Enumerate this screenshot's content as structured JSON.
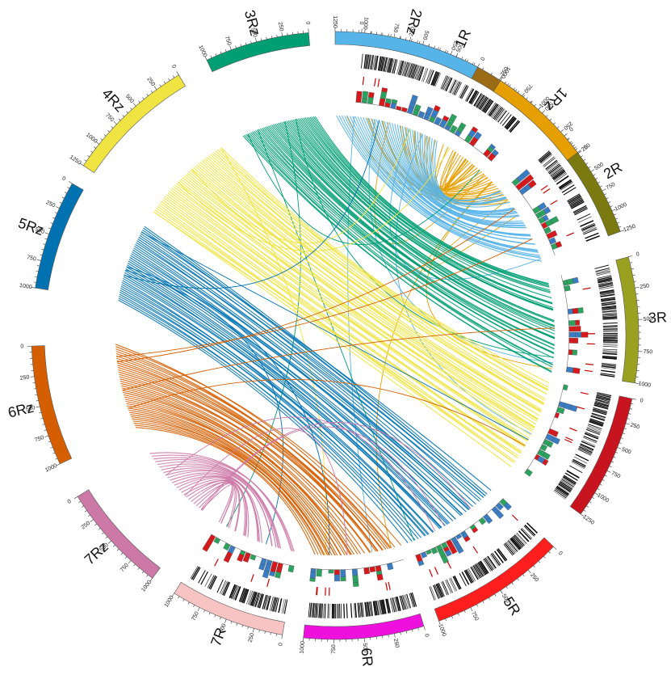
{
  "chromosomes": [
    {
      "id": "1R",
      "label": "1R",
      "color": "#9b6b16",
      "length": 1000,
      "ticks": [
        "0",
        "250",
        "500",
        "750",
        "1000"
      ],
      "side": "R"
    },
    {
      "id": "2R",
      "label": "2R",
      "color": "#7a7a10",
      "length": 1250,
      "ticks": [
        "0",
        "250",
        "500",
        "750",
        "1000",
        "1250"
      ],
      "side": "R"
    },
    {
      "id": "3R",
      "label": "3R",
      "color": "#9aa020",
      "length": 1000,
      "ticks": [
        "0",
        "250",
        "500",
        "750",
        "1000"
      ],
      "side": "R"
    },
    {
      "id": "4R",
      "label": "",
      "color": "#c8141e",
      "length": 1250,
      "ticks": [
        "0",
        "250",
        "500",
        "750",
        "1000",
        "1250"
      ],
      "side": "R"
    },
    {
      "id": "5R",
      "label": "5R",
      "color": "#ff1e1e",
      "length": 1000,
      "ticks": [
        "0",
        "250",
        "500",
        "750",
        "1000"
      ],
      "side": "R"
    },
    {
      "id": "6R",
      "label": "6R",
      "color": "#ee11dd",
      "length": 1000,
      "ticks": [
        "0",
        "250",
        "500",
        "750",
        "1000"
      ],
      "side": "R"
    },
    {
      "id": "7R",
      "label": "7R",
      "color": "#f7c3c3",
      "length": 1000,
      "ticks": [
        "0",
        "250",
        "500",
        "750",
        "1000"
      ],
      "side": "R"
    },
    {
      "id": "7Rz",
      "label": "7Rz",
      "color": "#cc79a7",
      "length": 1000,
      "ticks": [
        "0",
        "250",
        "500",
        "750",
        "1000"
      ],
      "side": "Rz"
    },
    {
      "id": "6Rz",
      "label": "6Rz",
      "color": "#d55e00",
      "length": 1000,
      "ticks": [
        "0",
        "250",
        "500",
        "750",
        "1000"
      ],
      "side": "Rz"
    },
    {
      "id": "5Rz",
      "label": "5Rz",
      "color": "#0072b2",
      "length": 1000,
      "ticks": [
        "0",
        "250",
        "500",
        "750",
        "1000"
      ],
      "side": "Rz"
    },
    {
      "id": "4Rz",
      "label": "4Rz",
      "color": "#f0e442",
      "length": 1250,
      "ticks": [
        "0",
        "250",
        "500",
        "750",
        "1000",
        "1250"
      ],
      "side": "Rz"
    },
    {
      "id": "3Rz",
      "label": "3Rz",
      "color": "#009e73",
      "length": 1000,
      "ticks": [
        "0",
        "250",
        "500",
        "750",
        "1000"
      ],
      "side": "Rz"
    },
    {
      "id": "2Rz",
      "label": "2Rz",
      "color": "#56b4e9",
      "length": 1250,
      "ticks": [
        "0",
        "250",
        "500",
        "750",
        "1000",
        "1250"
      ],
      "side": "Rz"
    },
    {
      "id": "1Rz",
      "label": "1Rz",
      "color": "#e69f00",
      "length": 1000,
      "ticks": [
        "0",
        "250",
        "500",
        "750",
        "1000"
      ],
      "side": "Rz"
    }
  ],
  "histogram_colors": [
    "#d7191c",
    "#2ca25f",
    "#3a7cc2",
    "#8c8c8c"
  ],
  "marker_color": "#000000",
  "highlight_color": "#cc0000",
  "links": [
    {
      "group": "1Rz",
      "count": 26,
      "color": "#e69f00"
    },
    {
      "group": "2Rz",
      "count": 40,
      "color": "#56b4e9"
    },
    {
      "group": "3Rz",
      "count": 45,
      "color": "#009e73"
    },
    {
      "group": "4Rz",
      "count": 45,
      "color": "#f0e442"
    },
    {
      "group": "5Rz",
      "count": 40,
      "color": "#0072b2"
    },
    {
      "group": "6Rz",
      "count": 38,
      "color": "#d55e00"
    },
    {
      "group": "7Rz",
      "count": 24,
      "color": "#cc79a7"
    }
  ]
}
